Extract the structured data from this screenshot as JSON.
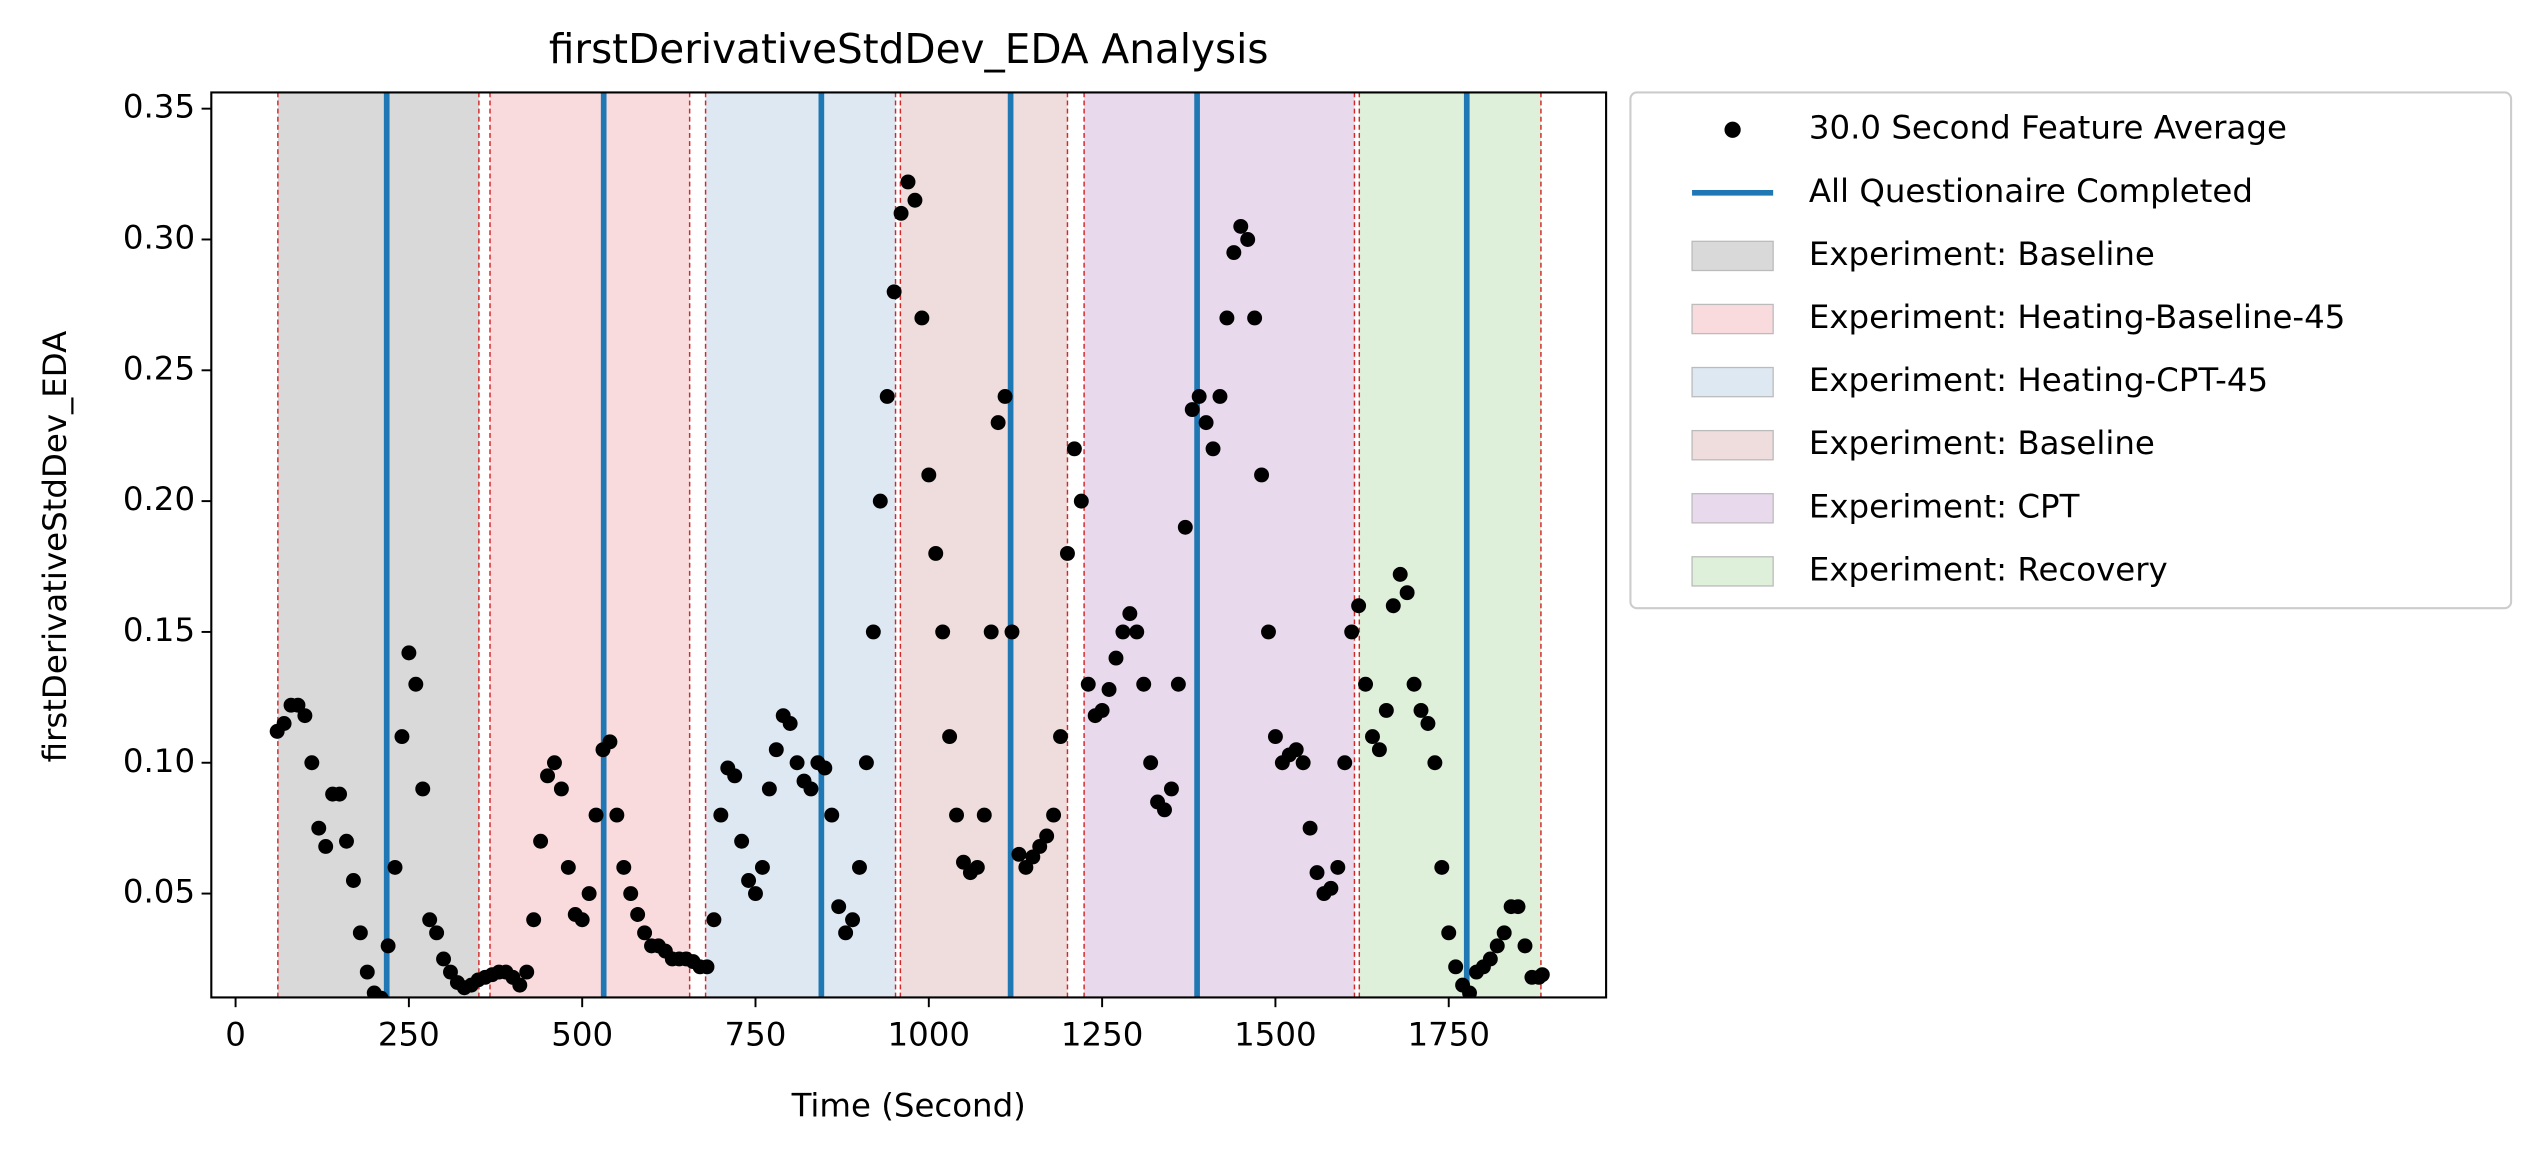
{
  "chart_data": {
    "type": "scatter",
    "title": "firstDerivativeStdDev_EDA Analysis",
    "x_label": "Time (Second)",
    "y_label": "firstDerivativeStdDev_EDA",
    "xlim": [
      -35,
      1977
    ],
    "xticks": [
      0,
      250,
      500,
      750,
      1000,
      1250,
      1500,
      1750
    ],
    "ylim": [
      0.0103,
      0.3562
    ],
    "yticks": [
      0.05,
      {
        "value": 0.1,
        "label": "0.10"
      },
      0.15,
      {
        "value": 0.2,
        "label": "0.20"
      },
      0.25,
      {
        "value": 0.3,
        "label": "0.30"
      },
      0.35
    ],
    "grid": false,
    "legend": "outside upper right",
    "series": [
      {
        "name": "30.0 Second Feature Average",
        "color": "#000000",
        "x": [
          60,
          70,
          80,
          90,
          100,
          110,
          120,
          130,
          140,
          150,
          160,
          170,
          180,
          190,
          200,
          210,
          220,
          230,
          240,
          250,
          260,
          270,
          280,
          290,
          300,
          310,
          320,
          330,
          340,
          350,
          360,
          370,
          380,
          390,
          400,
          410,
          420,
          430,
          440,
          450,
          460,
          470,
          480,
          490,
          500,
          510,
          520,
          530,
          540,
          550,
          560,
          570,
          580,
          590,
          600,
          610,
          620,
          630,
          640,
          650,
          660,
          670,
          680,
          690,
          700,
          710,
          720,
          730,
          740,
          750,
          760,
          770,
          780,
          790,
          800,
          810,
          820,
          830,
          840,
          850,
          860,
          870,
          880,
          890,
          900,
          910,
          920,
          930,
          940,
          950,
          960,
          970,
          980,
          990,
          1000,
          1010,
          1020,
          1030,
          1040,
          1050,
          1060,
          1070,
          1080,
          1090,
          1100,
          1110,
          1120,
          1130,
          1140,
          1150,
          1160,
          1170,
          1180,
          1190,
          1200,
          1210,
          1220,
          1230,
          1240,
          1250,
          1260,
          1270,
          1280,
          1290,
          1300,
          1310,
          1320,
          1330,
          1340,
          1350,
          1360,
          1370,
          1380,
          1390,
          1400,
          1410,
          1420,
          1430,
          1440,
          1450,
          1460,
          1470,
          1480,
          1490,
          1500,
          1510,
          1520,
          1530,
          1540,
          1550,
          1560,
          1570,
          1580,
          1590,
          1600,
          1610,
          1620,
          1630,
          1640,
          1650,
          1660,
          1670,
          1680,
          1690,
          1700,
          1710,
          1720,
          1730,
          1740,
          1750,
          1760,
          1770,
          1780,
          1790,
          1800,
          1810,
          1820,
          1830,
          1840,
          1850,
          1860,
          1870,
          1880,
          1885
        ],
        "values": [
          0.112,
          0.115,
          0.122,
          0.122,
          0.118,
          0.1,
          0.075,
          0.068,
          0.088,
          0.088,
          0.07,
          0.055,
          0.035,
          0.02,
          0.012,
          0.01,
          0.03,
          0.06,
          0.11,
          0.142,
          0.13,
          0.09,
          0.04,
          0.035,
          0.025,
          0.02,
          0.016,
          0.014,
          0.015,
          0.017,
          0.018,
          0.019,
          0.02,
          0.02,
          0.018,
          0.015,
          0.02,
          0.04,
          0.07,
          0.095,
          0.1,
          0.09,
          0.06,
          0.042,
          0.04,
          0.05,
          0.08,
          0.105,
          0.108,
          0.08,
          0.06,
          0.05,
          0.042,
          0.035,
          0.03,
          0.03,
          0.028,
          0.025,
          0.025,
          0.025,
          0.024,
          0.022,
          0.022,
          0.04,
          0.08,
          0.098,
          0.095,
          0.07,
          0.055,
          0.05,
          0.06,
          0.09,
          0.105,
          0.118,
          0.115,
          0.1,
          0.093,
          0.09,
          0.1,
          0.098,
          0.08,
          0.045,
          0.035,
          0.04,
          0.06,
          0.1,
          0.15,
          0.2,
          0.24,
          0.28,
          0.31,
          0.322,
          0.315,
          0.27,
          0.21,
          0.18,
          0.15,
          0.11,
          0.08,
          0.062,
          0.058,
          0.06,
          0.08,
          0.15,
          0.23,
          0.24,
          0.15,
          0.065,
          0.06,
          0.064,
          0.068,
          0.072,
          0.08,
          0.11,
          0.18,
          0.22,
          0.2,
          0.13,
          0.118,
          0.12,
          0.128,
          0.14,
          0.15,
          0.157,
          0.15,
          0.13,
          0.1,
          0.085,
          0.082,
          0.09,
          0.13,
          0.19,
          0.235,
          0.24,
          0.23,
          0.22,
          0.24,
          0.27,
          0.295,
          0.305,
          0.3,
          0.27,
          0.21,
          0.15,
          0.11,
          0.1,
          0.103,
          0.105,
          0.1,
          0.075,
          0.058,
          0.05,
          0.052,
          0.06,
          0.1,
          0.15,
          0.16,
          0.13,
          0.11,
          0.105,
          0.12,
          0.16,
          0.172,
          0.165,
          0.13,
          0.12,
          0.115,
          0.1,
          0.06,
          0.035,
          0.022,
          0.015,
          0.012,
          0.02,
          0.022,
          0.025,
          0.03,
          0.035,
          0.045,
          0.045,
          0.03,
          0.018,
          0.018,
          0.019
        ]
      }
    ],
    "questionnaire": {
      "name": "All Questionaire Completed",
      "color": "#1f77b4",
      "x": [
        218,
        531,
        845,
        1118,
        1387,
        1776
      ]
    },
    "boundary_color": "#d62728",
    "regions": [
      {
        "name": "Experiment: Baseline",
        "color": "#d9d9d9",
        "start": 61,
        "end": 351
      },
      {
        "name": "Experiment: Heating-Baseline-45",
        "color": "#f9dbdd",
        "start": 367,
        "end": 655
      },
      {
        "name": "Experiment: Heating-CPT-45",
        "color": "#dde8f2",
        "start": 678,
        "end": 952
      },
      {
        "name": "Experiment: Baseline",
        "color": "#eedddc",
        "start": 959,
        "end": 1200
      },
      {
        "name": "Experiment: CPT",
        "color": "#e9d9ec",
        "start": 1224,
        "end": 1614
      },
      {
        "name": "Experiment: Recovery",
        "color": "#def0da",
        "start": 1621,
        "end": 1883
      }
    ]
  }
}
